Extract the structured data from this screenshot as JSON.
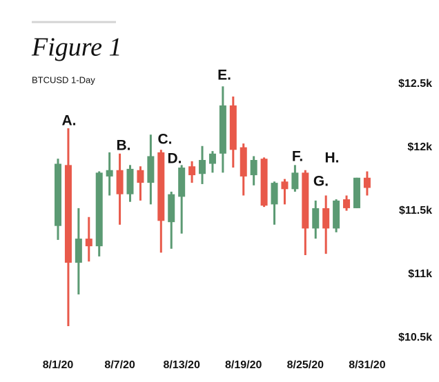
{
  "chart_data": {
    "type": "candlestick",
    "title": "Figure 1",
    "subtitle": "BTCUSD 1-Day",
    "up_color": "#5b9a73",
    "down_color": "#e8594a",
    "categories": [
      "8/1/20",
      null,
      null,
      null,
      null,
      null,
      "8/7/20",
      null,
      null,
      null,
      null,
      null,
      "8/13/20",
      null,
      null,
      null,
      null,
      null,
      "8/19/20",
      null,
      null,
      null,
      null,
      null,
      "8/25/20",
      null,
      null,
      null,
      null,
      null,
      "8/31/20"
    ],
    "open": [
      11380,
      11860,
      11090,
      11280,
      11220,
      11770,
      11820,
      11630,
      11820,
      11720,
      11960,
      11410,
      11610,
      11850,
      11790,
      11870,
      11950,
      12330,
      12000,
      11780,
      11910,
      11550,
      11730,
      11670,
      11800,
      11360,
      11520,
      11360,
      11590,
      11520,
      11760
    ],
    "high": [
      11910,
      12150,
      11520,
      11450,
      11810,
      11960,
      11950,
      11860,
      11850,
      12100,
      11980,
      11650,
      11860,
      11890,
      12010,
      11970,
      12480,
      12400,
      12030,
      11930,
      11920,
      11730,
      11750,
      11860,
      11820,
      11580,
      11620,
      11590,
      11620,
      11760,
      11810
    ],
    "low": [
      11270,
      10590,
      10840,
      11100,
      11140,
      11620,
      11390,
      11570,
      11580,
      11550,
      11170,
      11200,
      11320,
      11720,
      11710,
      11800,
      11800,
      11840,
      11620,
      11700,
      11530,
      11390,
      11550,
      11650,
      11150,
      11280,
      11160,
      11330,
      11500,
      11520,
      11620
    ],
    "close": [
      11870,
      11090,
      11280,
      11220,
      11800,
      11820,
      11630,
      11830,
      11720,
      11930,
      11420,
      11630,
      11840,
      11780,
      11900,
      11950,
      12330,
      11980,
      11770,
      11900,
      11540,
      11720,
      11670,
      11800,
      11360,
      11520,
      11360,
      11580,
      11520,
      11760,
      11680
    ],
    "ylim": [
      10400,
      12650
    ],
    "yticks": [
      {
        "value": 10500,
        "label": "$10.5k"
      },
      {
        "value": 11000,
        "label": "$11k"
      },
      {
        "value": 11500,
        "label": "$11.5k"
      },
      {
        "value": 12000,
        "label": "$12k"
      },
      {
        "value": 12500,
        "label": "$12.5k"
      }
    ],
    "annotations": [
      "A.",
      "B.",
      "C.",
      "D.",
      "E.",
      "F.",
      "G.",
      "H."
    ]
  }
}
